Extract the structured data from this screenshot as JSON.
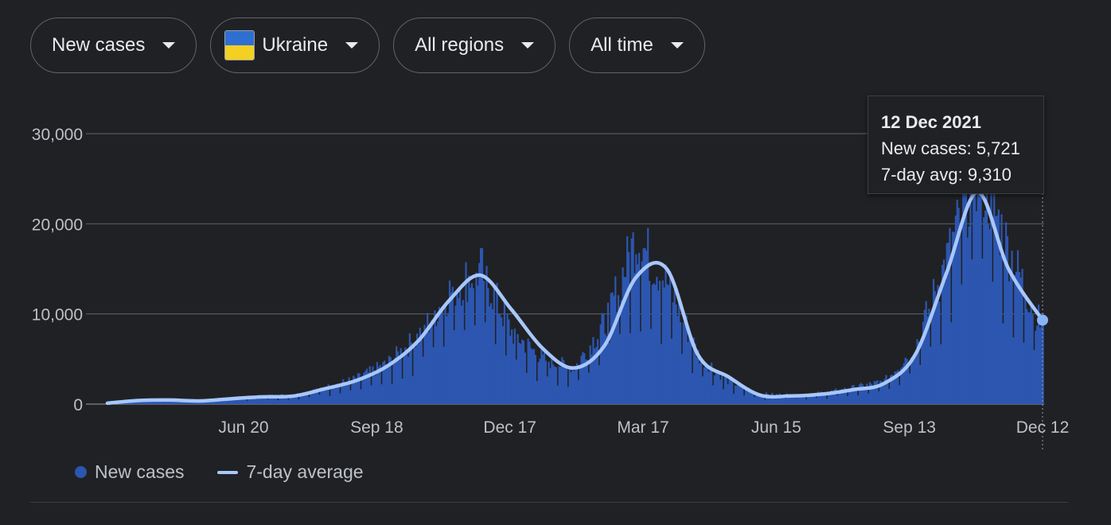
{
  "filters": {
    "metric": "New cases",
    "country": "Ukraine",
    "region": "All regions",
    "period": "All time"
  },
  "colors": {
    "bars": "#2c56b0",
    "avg_line": "#a8c7fa",
    "grid": "#5f6368",
    "background": "#202124"
  },
  "tooltip": {
    "date": "12 Dec 2021",
    "new_cases_text": "New cases: 5,721",
    "avg_text": "7-day avg: 9,310"
  },
  "legend": {
    "new_cases": "New cases",
    "avg": "7-day average"
  },
  "chart_data": {
    "type": "area",
    "title": "",
    "xlabel": "",
    "ylabel": "",
    "ylim": [
      0,
      30000
    ],
    "yticks": [
      0,
      10000,
      20000,
      30000
    ],
    "ytick_labels": [
      "0",
      "10,000",
      "20,000",
      "30,000"
    ],
    "xtick_labels": [
      "Jun 20",
      "Sep 18",
      "Dec 17",
      "Mar 17",
      "Jun 15",
      "Sep 13",
      "Dec 12"
    ],
    "grid": true,
    "legend_position": "bottom-left",
    "series": [
      {
        "name": "New cases",
        "kind": "bars",
        "dates": [
          "2020-03-20",
          "2020-04-10",
          "2020-05-01",
          "2020-05-22",
          "2020-06-12",
          "2020-07-03",
          "2020-07-24",
          "2020-08-14",
          "2020-09-04",
          "2020-09-25",
          "2020-10-16",
          "2020-11-06",
          "2020-11-27",
          "2020-12-18",
          "2021-01-08",
          "2021-01-29",
          "2021-02-19",
          "2021-03-12",
          "2021-04-02",
          "2021-04-23",
          "2021-05-14",
          "2021-06-04",
          "2021-06-25",
          "2021-07-16",
          "2021-08-06",
          "2021-08-27",
          "2021-09-17",
          "2021-10-08",
          "2021-10-29",
          "2021-11-19",
          "2021-12-10"
        ],
        "values": [
          150,
          450,
          500,
          400,
          700,
          900,
          1000,
          1800,
          2800,
          4500,
          7500,
          12500,
          15000,
          8000,
          5000,
          4000,
          9000,
          18500,
          13500,
          5500,
          2500,
          1100,
          1000,
          1200,
          1800,
          2500,
          6500,
          16000,
          26500,
          17000,
          9000
        ]
      },
      {
        "name": "7-day average",
        "kind": "line",
        "dates": [
          "2020-03-20",
          "2020-04-10",
          "2020-05-01",
          "2020-05-22",
          "2020-06-12",
          "2020-07-03",
          "2020-07-24",
          "2020-08-14",
          "2020-09-04",
          "2020-09-25",
          "2020-10-16",
          "2020-11-06",
          "2020-11-27",
          "2020-12-18",
          "2021-01-08",
          "2021-01-29",
          "2021-02-19",
          "2021-03-12",
          "2021-04-02",
          "2021-04-23",
          "2021-05-14",
          "2021-06-04",
          "2021-06-25",
          "2021-07-16",
          "2021-08-06",
          "2021-08-27",
          "2021-09-17",
          "2021-10-08",
          "2021-10-29",
          "2021-11-19",
          "2021-12-12"
        ],
        "values": [
          100,
          400,
          450,
          350,
          600,
          800,
          900,
          1700,
          2600,
          4200,
          7000,
          11500,
          14300,
          10500,
          6200,
          4000,
          6500,
          14000,
          15000,
          5500,
          3000,
          1000,
          900,
          1100,
          1600,
          2300,
          5500,
          14500,
          23500,
          15000,
          9310
        ]
      }
    ],
    "highlight": {
      "date": "2021-12-12",
      "new_cases": 5721,
      "avg": 9310
    }
  }
}
